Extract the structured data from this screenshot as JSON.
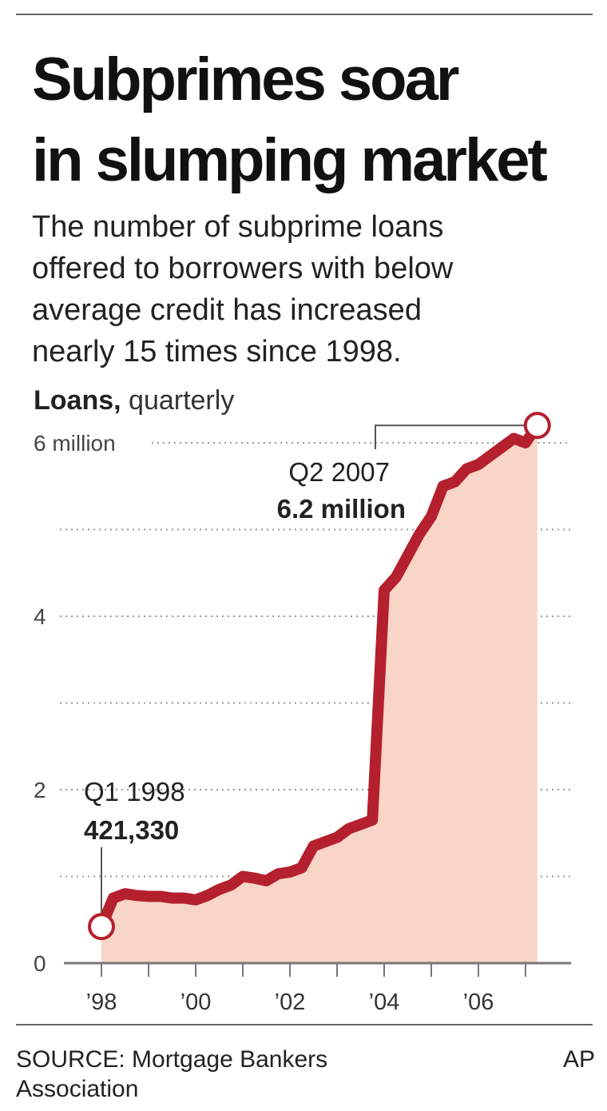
{
  "chart_data": {
    "type": "area",
    "title_lines": [
      "Subprimes soar",
      "in slumping market"
    ],
    "subtitle_lines": [
      "The number of subprime loans",
      "offered to borrowers with below",
      "average credit has increased",
      "nearly 15 times since 1998."
    ],
    "y_label_bold": "Loans,",
    "y_label": "quarterly",
    "x": [
      1998,
      1998.25,
      1998.5,
      1998.75,
      1999,
      1999.25,
      1999.5,
      1999.75,
      2000,
      2000.25,
      2000.5,
      2000.75,
      2001,
      2001.25,
      2001.5,
      2001.75,
      2002,
      2002.25,
      2002.5,
      2002.75,
      2003,
      2003.25,
      2003.5,
      2003.75,
      2004,
      2004.25,
      2004.5,
      2004.75,
      2005,
      2005.25,
      2005.5,
      2005.75,
      2006,
      2006.25,
      2006.5,
      2006.75,
      2007,
      2007.25
    ],
    "values": [
      0.42133,
      0.75,
      0.8,
      0.78,
      0.77,
      0.77,
      0.75,
      0.75,
      0.73,
      0.78,
      0.85,
      0.9,
      1.0,
      0.98,
      0.95,
      1.03,
      1.05,
      1.1,
      1.35,
      1.4,
      1.45,
      1.55,
      1.6,
      1.65,
      4.3,
      4.45,
      4.7,
      4.95,
      5.15,
      5.5,
      5.55,
      5.7,
      5.75,
      5.85,
      5.95,
      6.05,
      6.0,
      6.2
    ],
    "color": "#b5202e",
    "fill_color": "#f8d5c6",
    "xlim": [
      1997.2,
      2008
    ],
    "xticks": [
      {
        "value": 1998,
        "label": "’98"
      },
      {
        "value": 2000,
        "label": "’00"
      },
      {
        "value": 2002,
        "label": "’02"
      },
      {
        "value": 2004,
        "label": "’04"
      },
      {
        "value": 2006,
        "label": "’06"
      }
    ],
    "xminor": [
      1999,
      2001,
      2003,
      2005,
      2007
    ],
    "ylim": [
      0,
      6.55
    ],
    "yticks": [
      0,
      2,
      4,
      {
        "value": 6,
        "label": "6 million"
      }
    ],
    "yminor": [
      1,
      3,
      5
    ],
    "grid": true,
    "annotations": [
      {
        "label": "Q1 1998",
        "value_label": "421,330"
      },
      {
        "label": "Q2 2007",
        "value_label": "6.2 million"
      }
    ],
    "source": [
      "SOURCE: Mortgage Bankers",
      "Association"
    ],
    "credit": "AP"
  }
}
